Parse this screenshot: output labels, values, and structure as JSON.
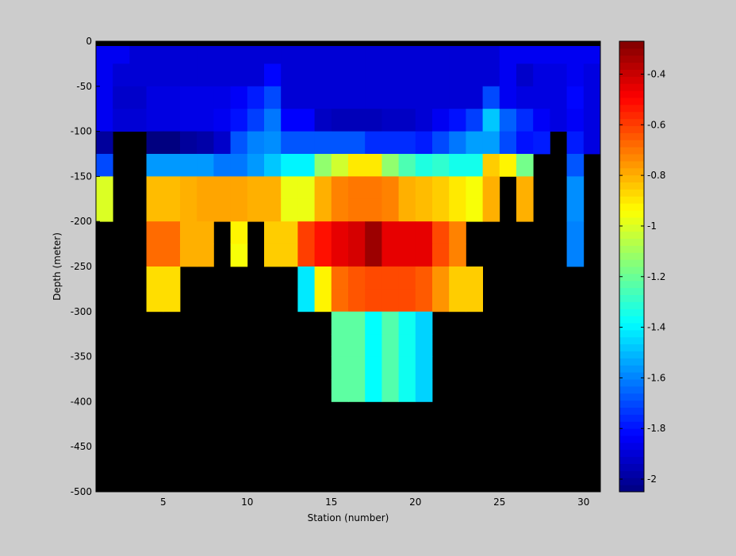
{
  "chart_data": {
    "type": "heatmap",
    "title": "",
    "xlabel": "Station (number)",
    "ylabel": "Depth (meter)",
    "xlim": [
      1,
      31
    ],
    "ylim": [
      -500,
      0
    ],
    "xticks": [
      5,
      10,
      15,
      20,
      25,
      30
    ],
    "yticks": [
      0,
      -50,
      -100,
      -150,
      -200,
      -250,
      -300,
      -350,
      -400,
      -450,
      -500
    ],
    "stations": [
      1,
      2,
      3,
      4,
      5,
      6,
      7,
      8,
      9,
      10,
      11,
      12,
      13,
      14,
      15,
      16,
      17,
      18,
      19,
      20,
      21,
      22,
      23,
      24,
      25,
      26,
      27,
      28,
      29,
      30
    ],
    "depth_bins": [
      [
        0,
        -25
      ],
      [
        -25,
        -50
      ],
      [
        -50,
        -75
      ],
      [
        -75,
        -100
      ],
      [
        -100,
        -125
      ],
      [
        -125,
        -150
      ],
      [
        -150,
        -175
      ],
      [
        -175,
        -200
      ],
      [
        -200,
        -225
      ],
      [
        -225,
        -250
      ],
      [
        -250,
        -275
      ],
      [
        -275,
        -300
      ],
      [
        -300,
        -325
      ],
      [
        -325,
        -350
      ],
      [
        -350,
        -375
      ],
      [
        -375,
        -400
      ]
    ],
    "no_data_color": "#000000",
    "values": [
      [
        -1.85,
        -1.85,
        -1.9,
        -1.9,
        -1.9,
        -1.9,
        -1.9,
        -1.9,
        -1.9,
        -1.9,
        -1.9,
        -1.9,
        -1.9,
        -1.9,
        -1.9,
        -1.9,
        -1.9,
        -1.9,
        -1.9,
        -1.9,
        -1.9,
        -1.9,
        -1.9,
        -1.9,
        -1.85,
        -1.85,
        -1.85,
        -1.85,
        -1.85,
        -1.85
      ],
      [
        -1.85,
        -1.9,
        -1.9,
        -1.9,
        -1.9,
        -1.9,
        -1.9,
        -1.9,
        -1.9,
        -1.9,
        -1.82,
        -1.9,
        -1.9,
        -1.9,
        -1.9,
        -1.9,
        -1.9,
        -1.9,
        -1.9,
        -1.9,
        -1.9,
        -1.9,
        -1.9,
        -1.9,
        -1.85,
        -1.92,
        -1.88,
        -1.88,
        -1.85,
        -1.88
      ],
      [
        -1.85,
        -1.92,
        -1.92,
        -1.88,
        -1.88,
        -1.87,
        -1.87,
        -1.87,
        -1.84,
        -1.78,
        -1.7,
        -1.9,
        -1.9,
        -1.9,
        -1.9,
        -1.9,
        -1.9,
        -1.9,
        -1.9,
        -1.9,
        -1.9,
        -1.9,
        -1.9,
        -1.7,
        -1.85,
        -1.88,
        -1.88,
        -1.88,
        -1.82,
        -1.88
      ],
      [
        -1.85,
        -1.9,
        -1.9,
        -1.88,
        -1.88,
        -1.87,
        -1.87,
        -1.85,
        -1.8,
        -1.72,
        -1.62,
        -1.83,
        -1.83,
        -1.93,
        -1.95,
        -1.95,
        -1.95,
        -1.93,
        -1.93,
        -1.9,
        -1.85,
        -1.8,
        -1.72,
        -1.48,
        -1.66,
        -1.75,
        -1.84,
        -1.88,
        -1.84,
        -1.88
      ],
      [
        -2.0,
        null,
        null,
        -2.05,
        -2.05,
        -2.0,
        -1.98,
        -1.92,
        -1.68,
        -1.6,
        -1.58,
        -1.68,
        -1.68,
        -1.68,
        -1.68,
        -1.68,
        -1.75,
        -1.75,
        -1.75,
        -1.78,
        -1.7,
        -1.62,
        -1.55,
        -1.55,
        -1.7,
        -1.8,
        -1.78,
        null,
        -1.78,
        -1.88
      ],
      [
        -1.7,
        null,
        null,
        -1.56,
        -1.56,
        -1.56,
        -1.56,
        -1.62,
        -1.62,
        -1.56,
        -1.48,
        -1.4,
        -1.4,
        -1.13,
        -1.02,
        -0.9,
        -0.9,
        -1.13,
        -1.25,
        -1.33,
        -1.3,
        -1.35,
        -1.35,
        -0.85,
        -0.92,
        -1.18,
        null,
        null,
        -1.68,
        null
      ],
      [
        -1.0,
        null,
        null,
        -0.82,
        -0.82,
        -0.8,
        -0.78,
        -0.78,
        -0.78,
        -0.8,
        -0.8,
        -0.97,
        -0.97,
        -0.8,
        -0.72,
        -0.7,
        -0.7,
        -0.72,
        -0.8,
        -0.82,
        -0.85,
        -0.9,
        -0.95,
        -0.8,
        null,
        -0.8,
        null,
        null,
        -1.58,
        null
      ],
      [
        -1.0,
        null,
        null,
        -0.82,
        -0.82,
        -0.8,
        -0.78,
        -0.78,
        -0.78,
        -0.8,
        -0.8,
        -0.97,
        -0.97,
        -0.8,
        -0.72,
        -0.7,
        -0.7,
        -0.72,
        -0.8,
        -0.82,
        -0.85,
        -0.9,
        -0.95,
        -0.8,
        null,
        -0.8,
        null,
        null,
        -1.58,
        null
      ],
      [
        null,
        null,
        null,
        -0.68,
        -0.68,
        -0.8,
        -0.8,
        null,
        -0.92,
        null,
        -0.85,
        -0.85,
        -0.6,
        -0.52,
        -0.45,
        -0.42,
        -0.32,
        -0.45,
        -0.45,
        -0.45,
        -0.62,
        -0.72,
        null,
        null,
        null,
        null,
        null,
        null,
        -1.6,
        null
      ],
      [
        null,
        null,
        null,
        -0.68,
        -0.68,
        -0.8,
        -0.8,
        null,
        -0.95,
        null,
        -0.85,
        -0.85,
        -0.6,
        -0.52,
        -0.45,
        -0.42,
        -0.32,
        -0.45,
        -0.45,
        -0.45,
        -0.62,
        -0.72,
        null,
        null,
        null,
        null,
        null,
        null,
        -1.6,
        null
      ],
      [
        null,
        null,
        null,
        -0.88,
        -0.88,
        null,
        null,
        null,
        null,
        null,
        null,
        null,
        -1.42,
        -0.92,
        -0.68,
        -0.64,
        -0.62,
        -0.62,
        -0.62,
        -0.65,
        -0.75,
        -0.85,
        -0.85,
        null,
        null,
        null,
        null,
        null,
        null,
        null
      ],
      [
        null,
        null,
        null,
        -0.88,
        -0.88,
        null,
        null,
        null,
        null,
        null,
        null,
        null,
        -1.42,
        -0.92,
        -0.68,
        -0.64,
        -0.62,
        -0.62,
        -0.62,
        -0.65,
        -0.75,
        -0.85,
        -0.85,
        null,
        null,
        null,
        null,
        null,
        null,
        null
      ],
      [
        null,
        null,
        null,
        null,
        null,
        null,
        null,
        null,
        null,
        null,
        null,
        null,
        null,
        null,
        -1.22,
        -1.22,
        -1.38,
        -1.24,
        -1.36,
        -1.46,
        null,
        null,
        null,
        null,
        null,
        null,
        null,
        null,
        null,
        null
      ],
      [
        null,
        null,
        null,
        null,
        null,
        null,
        null,
        null,
        null,
        null,
        null,
        null,
        null,
        null,
        -1.22,
        -1.22,
        -1.38,
        -1.24,
        -1.36,
        -1.46,
        null,
        null,
        null,
        null,
        null,
        null,
        null,
        null,
        null,
        null
      ],
      [
        null,
        null,
        null,
        null,
        null,
        null,
        null,
        null,
        null,
        null,
        null,
        null,
        null,
        null,
        -1.22,
        -1.22,
        -1.38,
        -1.24,
        -1.36,
        -1.46,
        null,
        null,
        null,
        null,
        null,
        null,
        null,
        null,
        null,
        null
      ],
      [
        null,
        null,
        null,
        null,
        null,
        null,
        null,
        null,
        null,
        null,
        null,
        null,
        null,
        null,
        -1.22,
        -1.22,
        -1.38,
        -1.24,
        -1.36,
        -1.46,
        null,
        null,
        null,
        null,
        null,
        null,
        null,
        null,
        null,
        null
      ]
    ],
    "colorbar": {
      "colormap": "jet",
      "clim": [
        -2.05,
        -0.27
      ],
      "ticks": [
        -0.4,
        -0.6,
        -0.8,
        -1,
        -1.2,
        -1.4,
        -1.6,
        -1.8,
        -2
      ],
      "tick_labels": [
        "-0.4",
        "-0.6",
        "-0.8",
        "-1",
        "-1.2",
        "-1.4",
        "-1.6",
        "-1.8",
        "-2"
      ]
    },
    "grid": false,
    "legend": "none"
  }
}
